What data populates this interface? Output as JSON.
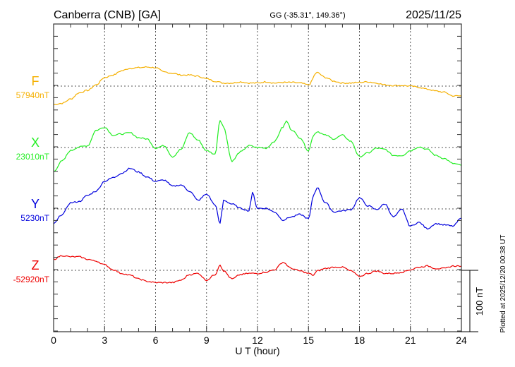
{
  "chart_data": {
    "type": "line",
    "title": "Canberra (CNB)  [GA]",
    "subtitle": "GG (-35.31°, 149.36°)",
    "date": "2025/11/25",
    "xlabel": "U T (hour)",
    "xlim": [
      0,
      24
    ],
    "xticks": [
      "0",
      "3",
      "6",
      "9",
      "12",
      "15",
      "18",
      "21",
      "24"
    ],
    "scale_bar_label": "100 nT",
    "tick_interval_nT": 20,
    "footer": "Plotted at 2025/12/20 00:38 UT",
    "grid": true,
    "units_note": "values are nT offsets from each series baseline",
    "series": [
      {
        "name": "F",
        "baseline_label": "57940nT",
        "baseline_nT": 57940,
        "color": "#f5b000",
        "points": [
          [
            0,
            -30
          ],
          [
            0.5,
            -28
          ],
          [
            1,
            -21
          ],
          [
            1.5,
            -11
          ],
          [
            2,
            -7
          ],
          [
            2.5,
            2
          ],
          [
            3,
            14
          ],
          [
            3.5,
            18
          ],
          [
            4,
            25
          ],
          [
            4.5,
            29
          ],
          [
            5,
            30
          ],
          [
            5.5,
            31
          ],
          [
            6,
            30
          ],
          [
            6.5,
            23
          ],
          [
            7,
            21
          ],
          [
            7.5,
            18
          ],
          [
            8,
            18
          ],
          [
            8.5,
            16
          ],
          [
            9,
            12
          ],
          [
            9.5,
            8
          ],
          [
            10,
            5
          ],
          [
            10.5,
            5
          ],
          [
            11,
            7
          ],
          [
            11.5,
            5
          ],
          [
            12,
            5
          ],
          [
            12.5,
            7
          ],
          [
            13,
            5
          ],
          [
            13.5,
            6
          ],
          [
            14,
            6
          ],
          [
            14.5,
            5
          ],
          [
            15,
            2
          ],
          [
            15.5,
            22
          ],
          [
            16,
            14
          ],
          [
            16.5,
            8
          ],
          [
            17,
            5
          ],
          [
            17.5,
            5
          ],
          [
            18,
            6
          ],
          [
            18.5,
            7
          ],
          [
            19,
            5
          ],
          [
            19.5,
            2
          ],
          [
            20,
            1
          ],
          [
            20.5,
            1
          ],
          [
            21,
            0
          ],
          [
            21.5,
            -2
          ],
          [
            22,
            -5
          ],
          [
            22.5,
            -8
          ],
          [
            23,
            -10
          ],
          [
            23.5,
            -16
          ],
          [
            24,
            -16
          ]
        ]
      },
      {
        "name": "X",
        "baseline_label": "23010nT",
        "baseline_nT": 23010,
        "color": "#22ee22",
        "points": [
          [
            0,
            -39
          ],
          [
            0.5,
            -22
          ],
          [
            1,
            -5
          ],
          [
            1.5,
            1
          ],
          [
            2,
            3
          ],
          [
            2.5,
            28
          ],
          [
            3,
            33
          ],
          [
            3.5,
            20
          ],
          [
            4,
            22
          ],
          [
            4.5,
            24
          ],
          [
            5,
            16
          ],
          [
            5.5,
            14
          ],
          [
            6,
            -1
          ],
          [
            6.5,
            3
          ],
          [
            7,
            -15
          ],
          [
            7.5,
            -3
          ],
          [
            8,
            24
          ],
          [
            8.5,
            12
          ],
          [
            9,
            -5
          ],
          [
            9.5,
            -11
          ],
          [
            9.8,
            45
          ],
          [
            10,
            33
          ],
          [
            10.5,
            -22
          ],
          [
            11,
            -7
          ],
          [
            11.5,
            3
          ],
          [
            12,
            0
          ],
          [
            12.5,
            -1
          ],
          [
            13,
            10
          ],
          [
            13.5,
            33
          ],
          [
            13.7,
            43
          ],
          [
            14,
            29
          ],
          [
            14.5,
            16
          ],
          [
            15,
            -5
          ],
          [
            15.3,
            20
          ],
          [
            15.5,
            26
          ],
          [
            16,
            20
          ],
          [
            16.5,
            14
          ],
          [
            17,
            20
          ],
          [
            17.5,
            10
          ],
          [
            18,
            -15
          ],
          [
            18.5,
            -9
          ],
          [
            19,
            -1
          ],
          [
            19.5,
            -3
          ],
          [
            20,
            -13
          ],
          [
            20.5,
            -13
          ],
          [
            21,
            -5
          ],
          [
            21.5,
            1
          ],
          [
            22,
            -3
          ],
          [
            22.5,
            -13
          ],
          [
            23,
            -18
          ],
          [
            23.5,
            -26
          ],
          [
            24,
            -29
          ]
        ]
      },
      {
        "name": "Y",
        "baseline_label": "5230nT",
        "baseline_nT": 5230,
        "color": "#0000dd",
        "points": [
          [
            0,
            -24
          ],
          [
            0.5,
            -9
          ],
          [
            1,
            10
          ],
          [
            1.5,
            12
          ],
          [
            2,
            22
          ],
          [
            2.5,
            29
          ],
          [
            3,
            45
          ],
          [
            3.5,
            51
          ],
          [
            4,
            58
          ],
          [
            4.5,
            66
          ],
          [
            5,
            60
          ],
          [
            5.5,
            52
          ],
          [
            6,
            45
          ],
          [
            6.5,
            47
          ],
          [
            7,
            37
          ],
          [
            7.5,
            39
          ],
          [
            8,
            29
          ],
          [
            8.5,
            14
          ],
          [
            9,
            24
          ],
          [
            9.5,
            7
          ],
          [
            9.8,
            -24
          ],
          [
            10,
            14
          ],
          [
            10.5,
            8
          ],
          [
            11,
            1
          ],
          [
            11.5,
            -3
          ],
          [
            11.7,
            26
          ],
          [
            12,
            1
          ],
          [
            12.5,
            1
          ],
          [
            13,
            -5
          ],
          [
            13.5,
            -18
          ],
          [
            14,
            -13
          ],
          [
            14.5,
            -9
          ],
          [
            15,
            -16
          ],
          [
            15.3,
            22
          ],
          [
            15.5,
            35
          ],
          [
            16,
            10
          ],
          [
            16.5,
            -5
          ],
          [
            17,
            -3
          ],
          [
            17.5,
            -1
          ],
          [
            18,
            18
          ],
          [
            18.5,
            5
          ],
          [
            19,
            -1
          ],
          [
            19.5,
            8
          ],
          [
            20,
            -13
          ],
          [
            20.5,
            -1
          ],
          [
            21,
            -28
          ],
          [
            21.5,
            -22
          ],
          [
            22,
            -32
          ],
          [
            22.5,
            -24
          ],
          [
            23,
            -26
          ],
          [
            23.5,
            -28
          ],
          [
            24,
            -15
          ]
        ]
      },
      {
        "name": "Z",
        "baseline_label": "-52920nT",
        "baseline_nT": -52920,
        "color": "#ee0000",
        "points": [
          [
            0,
            18
          ],
          [
            0.5,
            24
          ],
          [
            1,
            22
          ],
          [
            1.5,
            22
          ],
          [
            2,
            18
          ],
          [
            2.5,
            15
          ],
          [
            3,
            9
          ],
          [
            3.5,
            1
          ],
          [
            4,
            -5
          ],
          [
            4.5,
            -8
          ],
          [
            5,
            -14
          ],
          [
            5.5,
            -18
          ],
          [
            6,
            -20
          ],
          [
            6.5,
            -20
          ],
          [
            7,
            -20
          ],
          [
            7.5,
            -16
          ],
          [
            8,
            -7
          ],
          [
            8.5,
            -5
          ],
          [
            9,
            -16
          ],
          [
            9.5,
            -7
          ],
          [
            9.8,
            9
          ],
          [
            10,
            -1
          ],
          [
            10.5,
            -14
          ],
          [
            11,
            -7
          ],
          [
            11.5,
            -5
          ],
          [
            12,
            -5
          ],
          [
            12.5,
            -3
          ],
          [
            13,
            1
          ],
          [
            13.5,
            13
          ],
          [
            14,
            3
          ],
          [
            14.5,
            -1
          ],
          [
            15,
            -5
          ],
          [
            15.3,
            -8
          ],
          [
            15.5,
            -1
          ],
          [
            16,
            3
          ],
          [
            16.5,
            5
          ],
          [
            17,
            5
          ],
          [
            17.5,
            -1
          ],
          [
            18,
            -10
          ],
          [
            18.5,
            -5
          ],
          [
            19,
            -1
          ],
          [
            19.5,
            -5
          ],
          [
            20,
            -5
          ],
          [
            20.5,
            -3
          ],
          [
            21,
            1
          ],
          [
            21.5,
            5
          ],
          [
            22,
            7
          ],
          [
            22.5,
            3
          ],
          [
            23,
            3
          ],
          [
            23.5,
            7
          ],
          [
            24,
            7
          ]
        ]
      }
    ]
  }
}
